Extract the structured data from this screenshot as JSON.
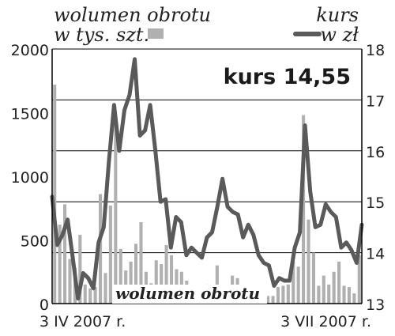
{
  "legend": {
    "volume_line1": "wolumen obrotu",
    "volume_line2": "w tys. szt.",
    "price_line1": "kurs",
    "price_line2": "w zł"
  },
  "callout": "kurs 14,55",
  "inner_label": "wolumen obrotu",
  "colors": {
    "bars": "#b0b0b0",
    "line": "#5a5a5a",
    "grid": "#000000",
    "text": "#222222"
  },
  "chart_data": {
    "type": "bar+line",
    "left_axis": {
      "label": "wolumen obrotu w tys. szt.",
      "range": [
        0,
        2000
      ],
      "ticks": [
        "0",
        "500",
        "1000",
        "1500",
        "2000"
      ]
    },
    "right_axis": {
      "label": "kurs w zł",
      "range": [
        13,
        18
      ],
      "ticks": [
        "13",
        "14",
        "15",
        "16",
        "17",
        "18"
      ]
    },
    "x_tick_labels": [
      "3 IV 2007 r.",
      "3 VII 2007 r."
    ],
    "grid": "horizontal",
    "series": [
      {
        "name": "wolumen obrotu",
        "type": "bar",
        "axis": "left",
        "values": [
          1720,
          620,
          780,
          350,
          280,
          540,
          150,
          120,
          130,
          860,
          240,
          770,
          1470,
          430,
          260,
          330,
          470,
          640,
          250,
          160,
          340,
          310,
          460,
          380,
          270,
          250,
          180,
          120,
          80,
          110,
          150,
          110,
          300,
          130,
          100,
          220,
          200,
          140,
          110,
          130,
          110,
          100,
          60,
          60,
          130,
          140,
          150,
          330,
          290,
          1480,
          660,
          400,
          140,
          220,
          150,
          250,
          330,
          140,
          130,
          80,
          380
        ]
      },
      {
        "name": "kurs",
        "type": "line",
        "axis": "right",
        "values": [
          15.1,
          14.15,
          14.35,
          14.65,
          13.9,
          13.1,
          13.6,
          13.5,
          13.3,
          14.2,
          14.5,
          15.8,
          16.9,
          16.0,
          16.8,
          17.1,
          17.8,
          16.3,
          16.4,
          16.9,
          16.0,
          15.0,
          15.05,
          14.1,
          14.7,
          14.6,
          13.95,
          14.1,
          14.0,
          13.9,
          14.3,
          14.4,
          14.9,
          15.45,
          14.9,
          14.8,
          14.75,
          14.3,
          14.55,
          14.35,
          13.95,
          13.8,
          13.75,
          13.35,
          13.5,
          13.45,
          13.45,
          14.1,
          14.4,
          16.5,
          15.2,
          14.5,
          14.55,
          14.95,
          14.8,
          14.7,
          14.1,
          14.2,
          14.05,
          13.8,
          14.55
        ]
      }
    ],
    "last_price_label": "kurs 14,55"
  }
}
